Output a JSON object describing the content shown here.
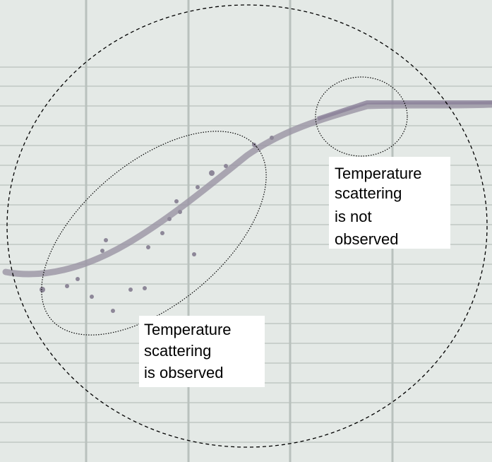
{
  "annotations": [
    {
      "lines": [
        "Temperature",
        "scattering",
        "is not",
        "observed"
      ]
    },
    {
      "lines": [
        "Temperature",
        "scattering",
        "is observed"
      ]
    }
  ]
}
